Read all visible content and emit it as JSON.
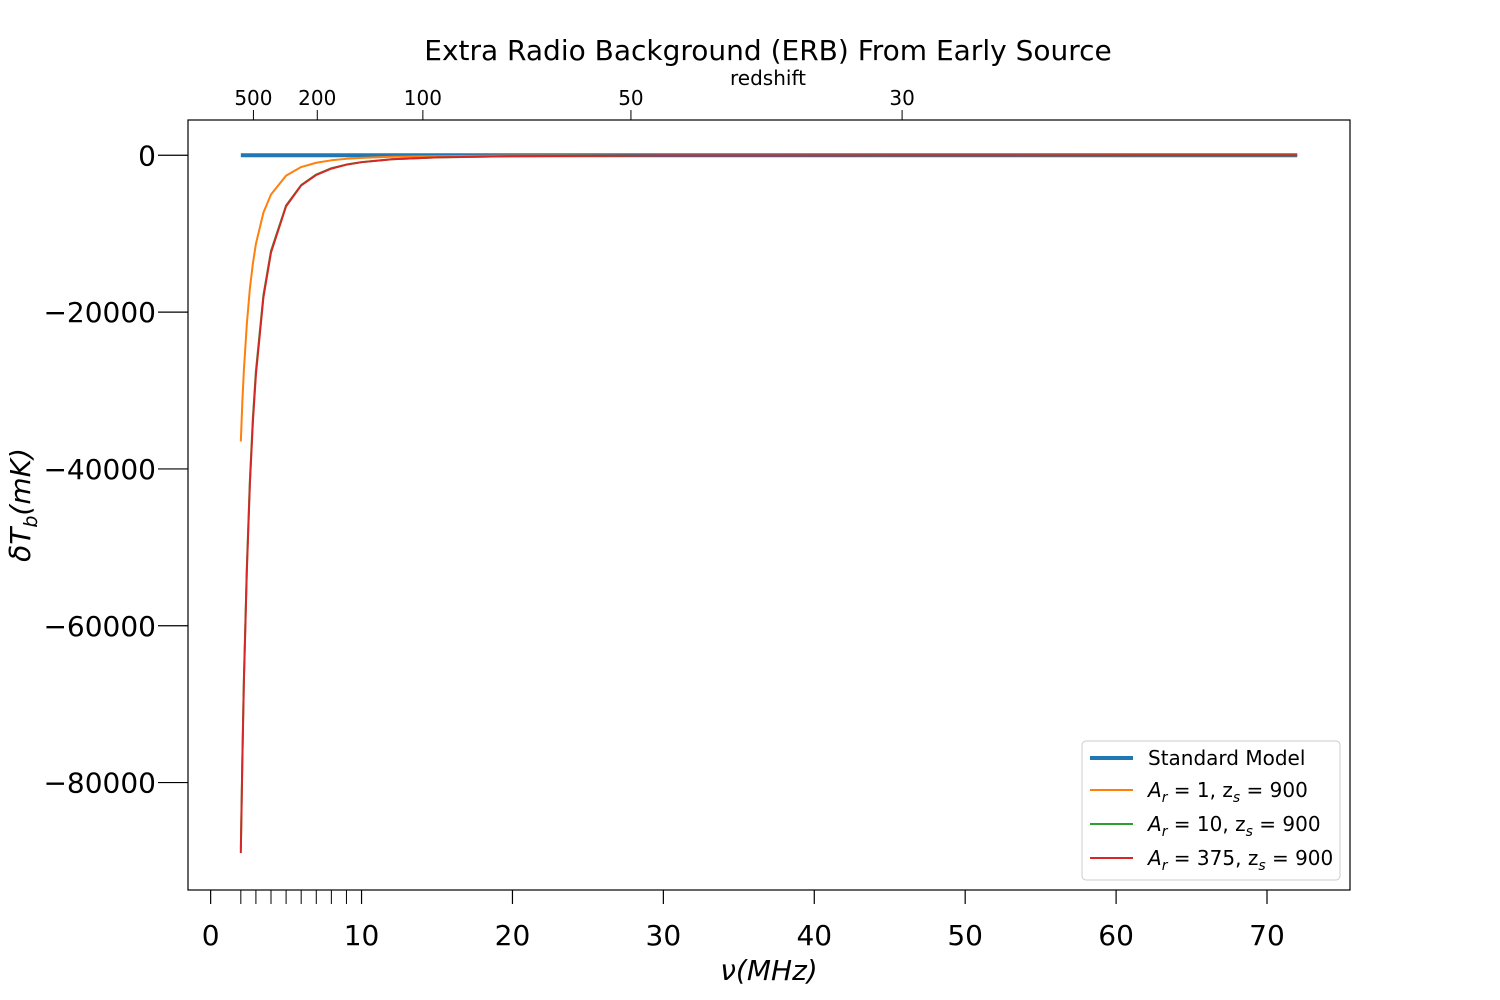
{
  "chart_data": {
    "type": "line",
    "title": "Extra Radio Background (ERB) From Early Source",
    "xlabel": "ν(MHz)",
    "ylabel": "δT_b(mK)",
    "top_axis_label": "redshift",
    "xlim": [
      -1.5,
      75.5
    ],
    "ylim": [
      -93700,
      4500
    ],
    "x_ticks": [
      0,
      10,
      20,
      30,
      40,
      50,
      60,
      70
    ],
    "x_tick_labels": [
      "0",
      "10",
      "20",
      "30",
      "40",
      "50",
      "60",
      "70"
    ],
    "x_minor_ticks": [
      2,
      3,
      4,
      5,
      6,
      7,
      8,
      9
    ],
    "y_ticks": [
      0,
      -20000,
      -40000,
      -60000,
      -80000
    ],
    "y_tick_labels": [
      "0",
      "−20000",
      "−40000",
      "−60000",
      "−80000"
    ],
    "top_ticks": [
      {
        "z": 500,
        "label": "500"
      },
      {
        "z": 200,
        "label": "200"
      },
      {
        "z": 100,
        "label": "100"
      },
      {
        "z": 50,
        "label": "50"
      },
      {
        "z": 30,
        "label": "30"
      }
    ],
    "grid": false,
    "legend_position": "lower-right",
    "series": [
      {
        "name": "Standard Model",
        "color": "#1f77b4",
        "x": [
          2,
          72
        ],
        "y": [
          0,
          0
        ]
      },
      {
        "name": "A_r = 1, z_s = 900",
        "color": "#ff7f0e",
        "x": [
          2,
          2.1,
          2.2,
          2.4,
          2.6,
          2.8,
          3,
          3.5,
          4,
          5,
          6,
          7,
          8,
          9,
          10,
          12,
          15,
          20,
          30,
          50,
          72
        ],
        "y": [
          -36500,
          -31500,
          -27500,
          -21500,
          -17000,
          -13800,
          -11300,
          -7300,
          -5000,
          -2600,
          -1500,
          -950,
          -640,
          -450,
          -330,
          -190,
          -100,
          -45,
          -15,
          -5,
          0
        ]
      },
      {
        "name": "A_r = 10, z_s = 900",
        "color": "#2ca02c",
        "x": [
          2,
          2.1,
          2.2,
          2.4,
          2.6,
          2.8,
          3,
          3.5,
          4,
          5,
          6,
          7,
          8,
          9,
          10,
          12,
          15,
          20,
          30,
          50,
          72
        ],
        "y": [
          -88500,
          -77000,
          -67000,
          -52500,
          -41500,
          -33500,
          -27500,
          -17800,
          -12200,
          -6400,
          -3800,
          -2450,
          -1650,
          -1180,
          -870,
          -500,
          -260,
          -110,
          -30,
          -5,
          0
        ]
      },
      {
        "name": "A_r = 375, z_s = 900",
        "color": "#d62728",
        "x": [
          2,
          2.1,
          2.2,
          2.4,
          2.6,
          2.8,
          3,
          3.5,
          4,
          5,
          6,
          7,
          8,
          9,
          10,
          12,
          15,
          20,
          30,
          50,
          72
        ],
        "y": [
          -89000,
          -77500,
          -67500,
          -53000,
          -42000,
          -34000,
          -28000,
          -18100,
          -12400,
          -6500,
          -3850,
          -2500,
          -1700,
          -1200,
          -880,
          -510,
          -265,
          -115,
          -32,
          -5,
          0
        ]
      }
    ]
  },
  "legend": {
    "items": [
      {
        "pre": "Standard Model",
        "sub1": "",
        "mid": "",
        "sub2": "",
        "post": ""
      },
      {
        "pre": "A",
        "sub1": "r",
        "mid": " = 1, z",
        "sub2": "s",
        "post": " = 900"
      },
      {
        "pre": "A",
        "sub1": "r",
        "mid": " = 10, z",
        "sub2": "s",
        "post": " = 900"
      },
      {
        "pre": "A",
        "sub1": "r",
        "mid": " = 375, z",
        "sub2": "s",
        "post": " = 900"
      }
    ]
  }
}
